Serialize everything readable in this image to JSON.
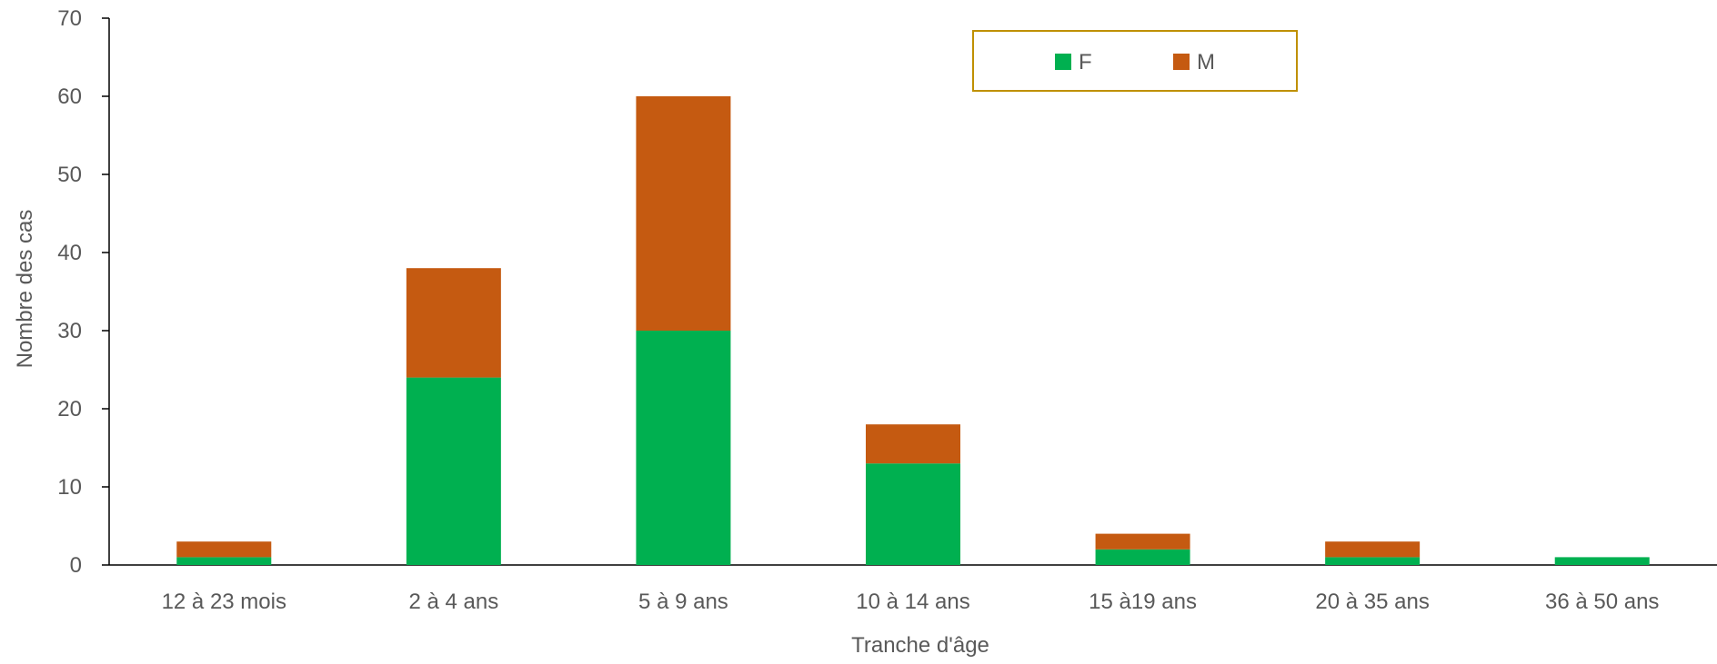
{
  "chart_data": {
    "type": "bar",
    "stacked": true,
    "xlabel": "Tranche d'âge",
    "ylabel": "Nombre des cas",
    "ylim": [
      0,
      70
    ],
    "yticks": [
      0,
      10,
      20,
      30,
      40,
      50,
      60,
      70
    ],
    "categories": [
      "12 à 23 mois",
      "2 à 4 ans",
      "5 à 9 ans",
      "10 à 14 ans",
      "15 à19 ans",
      "20 à 35 ans",
      "36 à 50 ans"
    ],
    "series": [
      {
        "name": "F",
        "color": "#00B050",
        "values": [
          1,
          24,
          30,
          13,
          2,
          1,
          1
        ]
      },
      {
        "name": "M",
        "color": "#C55A11",
        "values": [
          2,
          14,
          30,
          5,
          2,
          2,
          0
        ]
      }
    ],
    "grid": false,
    "legend": {
      "position": "top-right",
      "border_color": "#BF9000"
    }
  }
}
